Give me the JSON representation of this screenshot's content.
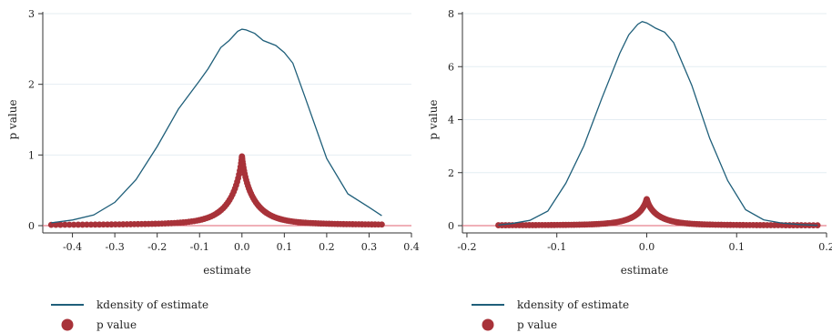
{
  "chart_data": [
    {
      "type": "line",
      "title": "",
      "xlabel": "estimate",
      "ylabel": "p value",
      "xlim": [
        -0.47,
        0.4
      ],
      "ylim": [
        0,
        3
      ],
      "xticks": [
        -0.4,
        -0.3,
        -0.2,
        -0.1,
        0,
        0.1,
        0.2,
        0.3,
        0.4
      ],
      "xtick_labels": [
        "-0.4",
        "-0.3",
        "-0.2",
        "-0.1",
        "0.0",
        "0.1",
        "0.2",
        "0.3",
        "0.4"
      ],
      "yticks": [
        0,
        1,
        2,
        3
      ],
      "ytick_labels": [
        "0",
        "1",
        "2",
        "3"
      ],
      "grid": true,
      "reference_line_y": 0,
      "legend_position": "bottom",
      "series": [
        {
          "name": "kdensity of estimate",
          "kind": "line",
          "color": "#1f5f7a",
          "x": [
            -0.45,
            -0.4,
            -0.35,
            -0.3,
            -0.25,
            -0.2,
            -0.15,
            -0.1,
            -0.08,
            -0.05,
            -0.03,
            -0.01,
            0.0,
            0.01,
            0.03,
            0.05,
            0.08,
            0.1,
            0.12,
            0.15,
            0.2,
            0.25,
            0.3,
            0.33
          ],
          "y": [
            0.04,
            0.08,
            0.15,
            0.33,
            0.65,
            1.12,
            1.65,
            2.05,
            2.22,
            2.52,
            2.62,
            2.75,
            2.78,
            2.77,
            2.72,
            2.62,
            2.55,
            2.45,
            2.3,
            1.8,
            0.95,
            0.45,
            0.26,
            0.14
          ]
        },
        {
          "name": "p value",
          "kind": "scatter",
          "color": "#a83239",
          "peak_x": 0.0,
          "peak_y": 0.98,
          "decay_scale": 0.035,
          "x_range": [
            -0.45,
            0.33
          ]
        }
      ]
    },
    {
      "type": "line",
      "title": "",
      "xlabel": "estimate",
      "ylabel": "p value",
      "xlim": [
        -0.205,
        0.2
      ],
      "ylim": [
        0,
        8
      ],
      "xticks": [
        -0.2,
        -0.1,
        0,
        0.1,
        0.2
      ],
      "xtick_labels": [
        "-0.2",
        "-0.1",
        "0.0",
        "0.1",
        "0.2"
      ],
      "yticks": [
        0,
        2,
        4,
        6,
        8
      ],
      "ytick_labels": [
        "0",
        "2",
        "4",
        "6",
        "8"
      ],
      "grid": true,
      "reference_line_y": 0,
      "legend_position": "bottom",
      "series": [
        {
          "name": "kdensity of estimate",
          "kind": "line",
          "color": "#1f5f7a",
          "x": [
            -0.165,
            -0.15,
            -0.13,
            -0.11,
            -0.09,
            -0.07,
            -0.05,
            -0.03,
            -0.02,
            -0.01,
            -0.005,
            0.0,
            0.005,
            0.01,
            0.02,
            0.03,
            0.05,
            0.07,
            0.09,
            0.11,
            0.13,
            0.15,
            0.17,
            0.19
          ],
          "y": [
            0.02,
            0.08,
            0.2,
            0.55,
            1.6,
            3.0,
            4.8,
            6.5,
            7.2,
            7.6,
            7.7,
            7.65,
            7.55,
            7.45,
            7.3,
            6.9,
            5.3,
            3.3,
            1.7,
            0.6,
            0.22,
            0.1,
            0.04,
            0.01
          ]
        },
        {
          "name": "p value",
          "kind": "scatter",
          "color": "#a83239",
          "peak_x": 0.0,
          "peak_y": 1.0,
          "decay_scale": 0.016,
          "x_range": [
            -0.165,
            0.19
          ]
        }
      ]
    }
  ]
}
